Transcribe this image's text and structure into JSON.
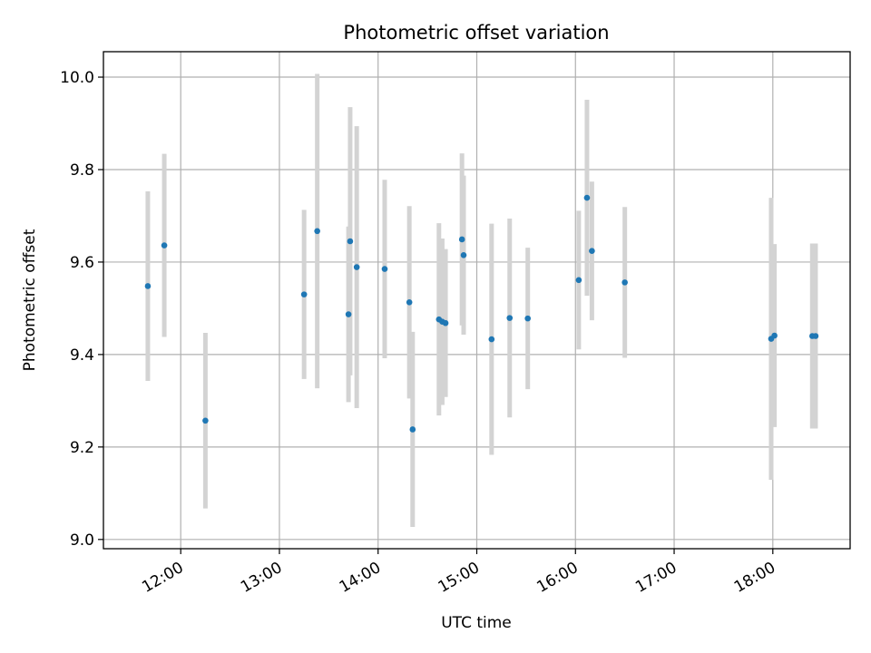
{
  "chart_data": {
    "type": "scatter",
    "title": "Photometric offset variation",
    "xlabel": "UTC time",
    "ylabel": "Photometric offset",
    "xlim": [
      "11:13",
      "18:47"
    ],
    "ylim": [
      8.98,
      10.055
    ],
    "x_ticks": [
      "12:00",
      "13:00",
      "14:00",
      "15:00",
      "16:00",
      "17:00",
      "18:00"
    ],
    "y_ticks": [
      9.0,
      9.2,
      9.4,
      9.6,
      9.8,
      10.0
    ],
    "y_tick_labels": [
      "9.0",
      "9.2",
      "9.4",
      "9.6",
      "9.8",
      "10.0"
    ],
    "grid": true,
    "marker_color": "#1f77b4",
    "errorbar_color": "#d3d3d3",
    "points": [
      {
        "t": "11:40",
        "y": 9.548,
        "err": 0.205
      },
      {
        "t": "11:50",
        "y": 9.636,
        "err": 0.198
      },
      {
        "t": "12:15",
        "y": 9.257,
        "err": 0.19
      },
      {
        "t": "13:15",
        "y": 9.53,
        "err": 0.183
      },
      {
        "t": "13:23",
        "y": 9.667,
        "err": 0.34
      },
      {
        "t": "13:42",
        "y": 9.487,
        "err": 0.19
      },
      {
        "t": "13:43",
        "y": 9.645,
        "err": 0.29
      },
      {
        "t": "13:47",
        "y": 9.589,
        "err": 0.305
      },
      {
        "t": "14:04",
        "y": 9.585,
        "err": 0.193
      },
      {
        "t": "14:19",
        "y": 9.513,
        "err": 0.208
      },
      {
        "t": "14:21",
        "y": 9.238,
        "err": 0.211
      },
      {
        "t": "14:37",
        "y": 9.476,
        "err": 0.208
      },
      {
        "t": "14:39",
        "y": 9.471,
        "err": 0.18
      },
      {
        "t": "14:41",
        "y": 9.468,
        "err": 0.16
      },
      {
        "t": "14:51",
        "y": 9.649,
        "err": 0.186
      },
      {
        "t": "14:52",
        "y": 9.615,
        "err": 0.172
      },
      {
        "t": "15:09",
        "y": 9.433,
        "err": 0.25
      },
      {
        "t": "15:20",
        "y": 9.479,
        "err": 0.215
      },
      {
        "t": "15:31",
        "y": 9.478,
        "err": 0.153
      },
      {
        "t": "16:02",
        "y": 9.561,
        "err": 0.15
      },
      {
        "t": "16:07",
        "y": 9.739,
        "err": 0.212
      },
      {
        "t": "16:10",
        "y": 9.624,
        "err": 0.15
      },
      {
        "t": "16:30",
        "y": 9.556,
        "err": 0.163
      },
      {
        "t": "17:59",
        "y": 9.434,
        "err": 0.305
      },
      {
        "t": "18:01",
        "y": 9.441,
        "err": 0.198
      },
      {
        "t": "18:24",
        "y": 9.44,
        "err": 0.2
      },
      {
        "t": "18:26",
        "y": 9.44,
        "err": 0.2
      }
    ]
  }
}
